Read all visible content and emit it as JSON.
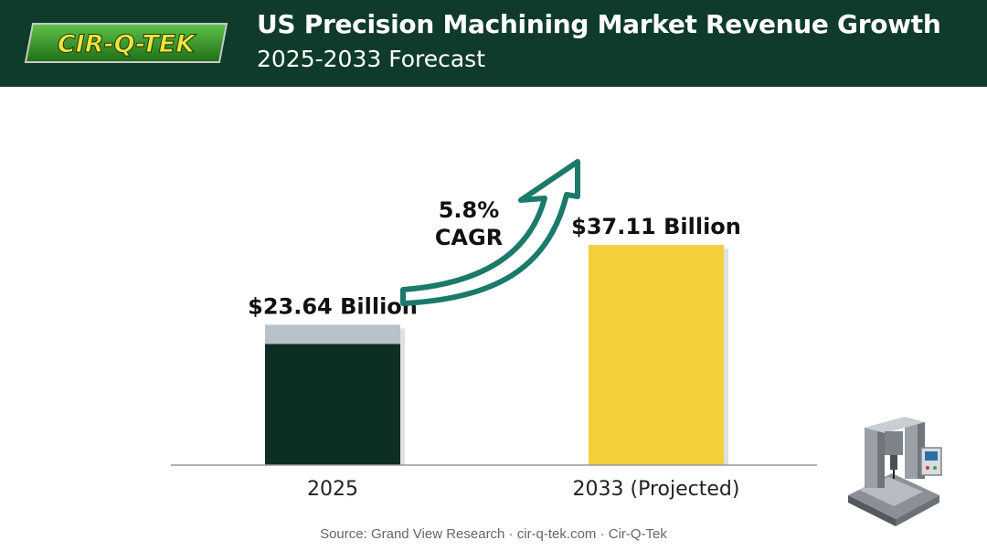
{
  "header": {
    "logo_text": "CIR-Q-TEK",
    "title": "US Precision Machining Market Revenue Growth",
    "subtitle": "2025-2033 Forecast"
  },
  "colors": {
    "header_bg": "#0f3b2a",
    "bar_2025": "#0d2e22",
    "bar_2025_cap": "#b8c2c9",
    "bar_2033": "#f4cf3c",
    "arrow": "#1b7a6a",
    "logo_green": "#2d8a22",
    "logo_yellow": "#f2e33a"
  },
  "chart_data": {
    "type": "bar",
    "categories": [
      "2025",
      "2033 (Projected)"
    ],
    "values": [
      23.64,
      37.11
    ],
    "data_labels": [
      "$23.64 Billion",
      "$37.11 Billion"
    ],
    "title": "US Precision Machining Market Revenue Growth",
    "subtitle": "2025-2033 Forecast",
    "xlabel": "",
    "ylabel": "",
    "ylim": [
      0,
      40
    ],
    "grid": false,
    "annotation": {
      "lines": [
        "5.8%",
        "CAGR"
      ]
    }
  },
  "footer": {
    "source": "Source: Grand View Research · cir-q-tek.com · Cir-Q-Tek"
  },
  "icons": [
    "cnc-machine-icon"
  ]
}
